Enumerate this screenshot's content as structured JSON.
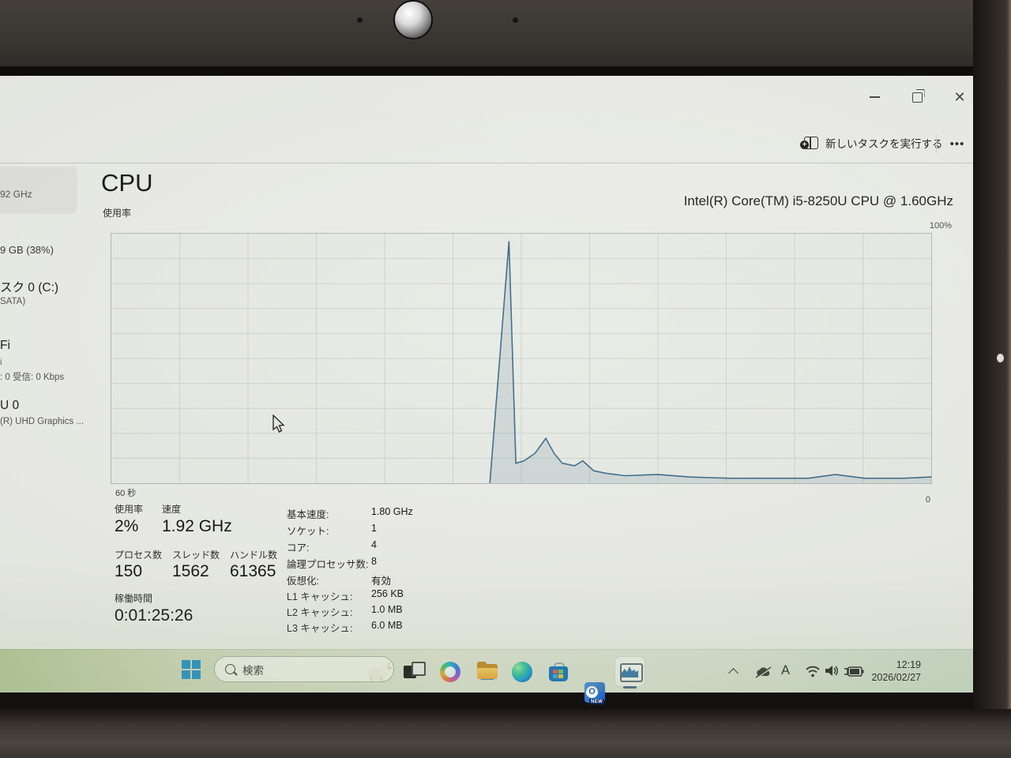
{
  "header": {
    "run_new_task_label": "新しいタスクを実行する",
    "more_label": "•••"
  },
  "window_controls": [
    "minimize",
    "restore",
    "close"
  ],
  "sidebar": {
    "selected_item_text": "92 GHz",
    "items": [
      {
        "text": "9 GB (38%)"
      },
      {
        "text": "スク 0 (C:)"
      },
      {
        "text": "SATA)"
      },
      {
        "text": "Fi"
      },
      {
        "text": "i"
      },
      {
        "text": ": 0 受信: 0 Kbps"
      },
      {
        "text": "U 0"
      },
      {
        "text": "(R) UHD Graphics ..."
      }
    ]
  },
  "cpu": {
    "title": "CPU",
    "usage_label": "使用率",
    "processor_name": "Intel(R) Core(TM) i5-8250U CPU @ 1.60GHz",
    "y_max_label": "100%",
    "x_left_label": "60 秒",
    "x_right_label": "0",
    "stats": {
      "usage": {
        "label": "使用率",
        "value": "2%"
      },
      "speed": {
        "label": "速度",
        "value": "1.92 GHz"
      },
      "processes": {
        "label": "プロセス数",
        "value": "150"
      },
      "threads": {
        "label": "スレッド数",
        "value": "1562"
      },
      "handles": {
        "label": "ハンドル数",
        "value": "61365"
      },
      "uptime": {
        "label": "稼働時間",
        "value": "0:01:25:26"
      }
    },
    "details": [
      {
        "label": "基本速度:",
        "value": "1.80 GHz"
      },
      {
        "label": "ソケット:",
        "value": "1"
      },
      {
        "label": "コア:",
        "value": "4"
      },
      {
        "label": "論理プロセッサ数:",
        "value": "8"
      },
      {
        "label": "仮想化:",
        "value": "有効"
      },
      {
        "label": "L1 キャッシュ:",
        "value": "256 KB"
      },
      {
        "label": "L2 キャッシュ:",
        "value": "1.0 MB"
      },
      {
        "label": "L3 キャッシュ:",
        "value": "6.0 MB"
      }
    ]
  },
  "chart_data": {
    "type": "area",
    "title": "CPU 使用率 (% over last 60 seconds)",
    "xlabel": "seconds ago (60 at left, 0 at right)",
    "ylabel": "使用率 %",
    "ylim": [
      0,
      100
    ],
    "x_range_seconds": [
      60,
      0
    ],
    "grid": true,
    "grid_columns": 12,
    "grid_rows": 10,
    "line_color": "#44708e",
    "fill_color": "rgba(68,112,142,0.14)",
    "grid_color": "#ccd6d1",
    "points_seconds_ago_percent": [
      [
        32.3,
        0
      ],
      [
        30.9,
        97
      ],
      [
        30.4,
        8
      ],
      [
        29.8,
        9
      ],
      [
        29.0,
        12
      ],
      [
        28.2,
        18
      ],
      [
        27.6,
        12
      ],
      [
        27.0,
        8
      ],
      [
        26.1,
        7
      ],
      [
        25.5,
        9
      ],
      [
        24.7,
        5
      ],
      [
        23.8,
        4
      ],
      [
        22.4,
        3
      ],
      [
        20.0,
        3.5
      ],
      [
        17.7,
        2.5
      ],
      [
        14.8,
        2
      ],
      [
        11.9,
        2
      ],
      [
        9.0,
        2
      ],
      [
        7.0,
        3.5
      ],
      [
        4.9,
        2
      ],
      [
        2.0,
        2
      ],
      [
        0.0,
        2.5
      ]
    ]
  },
  "taskbar": {
    "search_placeholder": "検索",
    "icon_names": [
      "task-view",
      "copilot",
      "file-explorer",
      "edge",
      "microsoft-store",
      "outlook-new",
      "task-manager"
    ],
    "outlook_badge": "NEW",
    "tray": {
      "ime_mode": "A",
      "time": "12:19",
      "date": "2026/02/27"
    }
  }
}
